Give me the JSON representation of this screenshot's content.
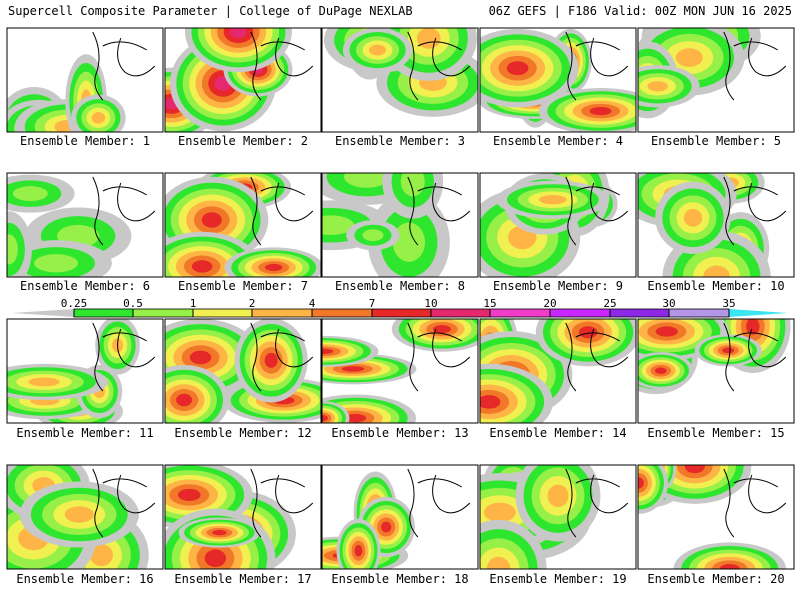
{
  "header": {
    "title": "Supercell Composite Parameter | College of DuPage NEXLAB",
    "run": "06Z GEFS | F186 Valid: 00Z MON JUN 16 2025"
  },
  "colorbar": {
    "ticks": [
      "0.25",
      "0.5",
      "1",
      "2",
      "4",
      "7",
      "10",
      "15",
      "20",
      "25",
      "30",
      "35"
    ],
    "colors": [
      "#c8c8c8",
      "#2ee62e",
      "#96f048",
      "#f0f050",
      "#ffb446",
      "#f07828",
      "#e62828",
      "#e6286e",
      "#f03cc8",
      "#c828ff",
      "#8c28e6",
      "#b496e6",
      "#3ce6f0"
    ]
  },
  "members": [
    {
      "label": "Ensemble Member: 1",
      "intensity": 1
    },
    {
      "label": "Ensemble Member: 2",
      "intensity": 3
    },
    {
      "label": "Ensemble Member: 3",
      "intensity": 1
    },
    {
      "label": "Ensemble Member: 4",
      "intensity": 2
    },
    {
      "label": "Ensemble Member: 5",
      "intensity": 1
    },
    {
      "label": "Ensemble Member: 6",
      "intensity": 0
    },
    {
      "label": "Ensemble Member: 7",
      "intensity": 2
    },
    {
      "label": "Ensemble Member: 8",
      "intensity": 0
    },
    {
      "label": "Ensemble Member: 9",
      "intensity": 1
    },
    {
      "label": "Ensemble Member: 10",
      "intensity": 1
    },
    {
      "label": "Ensemble Member: 11",
      "intensity": 1
    },
    {
      "label": "Ensemble Member: 12",
      "intensity": 2
    },
    {
      "label": "Ensemble Member: 13",
      "intensity": 2
    },
    {
      "label": "Ensemble Member: 14",
      "intensity": 2
    },
    {
      "label": "Ensemble Member: 15",
      "intensity": 2
    },
    {
      "label": "Ensemble Member: 16",
      "intensity": 1
    },
    {
      "label": "Ensemble Member: 17",
      "intensity": 2
    },
    {
      "label": "Ensemble Member: 18",
      "intensity": 2
    },
    {
      "label": "Ensemble Member: 19",
      "intensity": 1
    },
    {
      "label": "Ensemble Member: 20",
      "intensity": 2
    }
  ]
}
